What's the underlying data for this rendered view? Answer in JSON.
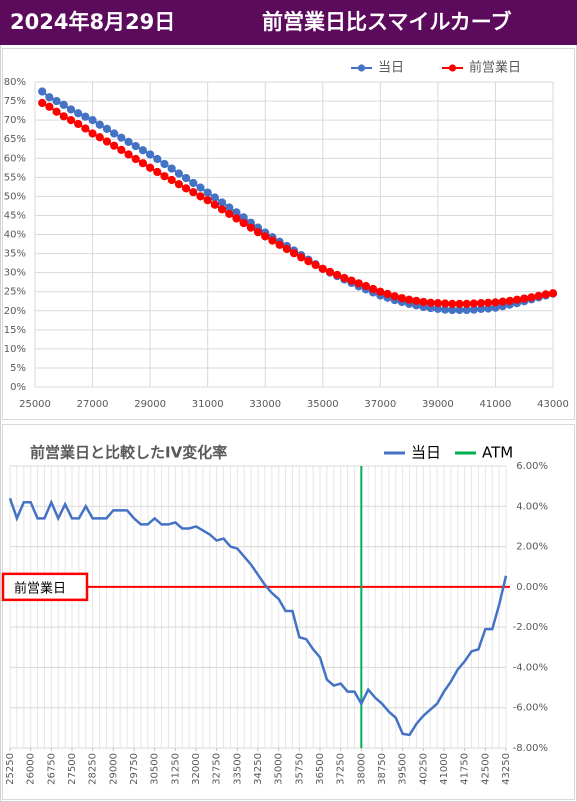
{
  "header": {
    "date": "2024年8月29日",
    "title": "前営業日比スマイルカーブ"
  },
  "chart_data": [
    {
      "type": "line",
      "markers": true,
      "grid": true,
      "legend": "top-right",
      "x": [
        25250,
        25500,
        25750,
        26000,
        26250,
        26500,
        26750,
        27000,
        27250,
        27500,
        27750,
        28000,
        28250,
        28500,
        28750,
        29000,
        29250,
        29500,
        29750,
        30000,
        30250,
        30500,
        30750,
        31000,
        31250,
        31500,
        31750,
        32000,
        32250,
        32500,
        32750,
        33000,
        33250,
        33500,
        33750,
        34000,
        34250,
        34500,
        34750,
        35000,
        35250,
        35500,
        35750,
        36000,
        36250,
        36500,
        36750,
        37000,
        37250,
        37500,
        37750,
        38000,
        38250,
        38500,
        38750,
        39000,
        39250,
        39500,
        39750,
        40000,
        40250,
        40500,
        40750,
        41000,
        41250,
        41500,
        41750,
        42000,
        42250,
        42500,
        42750,
        43000
      ],
      "series": [
        {
          "name": "当日",
          "color": "#4472c4",
          "values": [
            77.5,
            76,
            75,
            74,
            72.8,
            71.8,
            70.9,
            70,
            68.8,
            67.7,
            66.5,
            65.4,
            64.3,
            63.2,
            62.1,
            61,
            59.8,
            58.5,
            57.3,
            56,
            54.8,
            53.5,
            52.3,
            51,
            49.7,
            48.4,
            47.1,
            45.8,
            44.5,
            43.1,
            41.8,
            40.5,
            39.3,
            38.1,
            37,
            35.8,
            34.6,
            33.4,
            32.2,
            31,
            30,
            29.1,
            28.2,
            27.3,
            26.4,
            25.6,
            24.8,
            24,
            23.4,
            22.8,
            22.3,
            21.8,
            21.4,
            21,
            20.7,
            20.5,
            20.3,
            20.2,
            20.2,
            20.2,
            20.3,
            20.5,
            20.6,
            20.8,
            21.2,
            21.6,
            22,
            22.5,
            23,
            23.5,
            24,
            24.5
          ]
        },
        {
          "name": "前営業日",
          "color": "#ff0000",
          "values": [
            74.5,
            73.5,
            72.2,
            71,
            70,
            69,
            67.8,
            66.5,
            65.5,
            64.4,
            63.3,
            62.2,
            61,
            59.8,
            58.7,
            57.5,
            56.4,
            55.3,
            54.3,
            53.2,
            52.1,
            51.1,
            50,
            49,
            47.8,
            46.6,
            45.4,
            44.2,
            43,
            41.8,
            40.6,
            39.5,
            38.4,
            37.3,
            36.2,
            35.1,
            34,
            33,
            32,
            31,
            30.2,
            29.4,
            28.6,
            27.9,
            27.2,
            26.5,
            25.7,
            25,
            24.4,
            23.8,
            23.3,
            22.9,
            22.6,
            22.3,
            22.1,
            22,
            21.9,
            21.8,
            21.8,
            21.8,
            21.9,
            22,
            22.1,
            22.2,
            22.4,
            22.6,
            22.9,
            23.2,
            23.5,
            23.9,
            24.3,
            24.6
          ]
        }
      ],
      "xlim": [
        25000,
        43000
      ],
      "xticks": [
        25000,
        27000,
        29000,
        31000,
        33000,
        35000,
        37000,
        39000,
        41000,
        43000
      ],
      "ylim": [
        0,
        80
      ],
      "yticks": [
        {
          "value": 0,
          "label": "0%"
        },
        {
          "value": 5,
          "label": "5%"
        },
        {
          "value": 10,
          "label": "10%"
        },
        {
          "value": 15,
          "label": "15%"
        },
        {
          "value": 20,
          "label": "20%"
        },
        {
          "value": 25,
          "label": "25%"
        },
        {
          "value": 30,
          "label": "30%"
        },
        {
          "value": 35,
          "label": "35%"
        },
        {
          "value": 40,
          "label": "40%"
        },
        {
          "value": 45,
          "label": "45%"
        },
        {
          "value": 50,
          "label": "50%"
        },
        {
          "value": 55,
          "label": "55%"
        },
        {
          "value": 60,
          "label": "60%"
        },
        {
          "value": 65,
          "label": "65%"
        },
        {
          "value": 70,
          "label": "70%"
        },
        {
          "value": 75,
          "label": "75%"
        },
        {
          "value": 80,
          "label": "80%"
        }
      ]
    },
    {
      "type": "line",
      "title": "前営業日と比較したIV変化率",
      "markers": false,
      "grid": true,
      "y_axis_position": "right",
      "x": [
        25250,
        25500,
        25750,
        26000,
        26250,
        26500,
        26750,
        27000,
        27250,
        27500,
        27750,
        28000,
        28250,
        28500,
        28750,
        29000,
        29250,
        29500,
        29750,
        30000,
        30250,
        30500,
        30750,
        31000,
        31250,
        31500,
        31750,
        32000,
        32250,
        32500,
        32750,
        33000,
        33250,
        33500,
        33750,
        34000,
        34250,
        34500,
        34750,
        35000,
        35250,
        35500,
        35750,
        36000,
        36250,
        36500,
        36750,
        37000,
        37250,
        37500,
        37750,
        38000,
        38250,
        38500,
        38750,
        39000,
        39250,
        39500,
        39750,
        40000,
        40250,
        40500,
        40750,
        41000,
        41250,
        41500,
        41750,
        42000,
        42250,
        42500,
        42750,
        43000,
        43250
      ],
      "series": [
        {
          "name": "当日",
          "color": "#4472c4",
          "values": [
            4.4,
            3.4,
            4.2,
            4.2,
            3.4,
            3.4,
            4.2,
            3.4,
            4.1,
            3.4,
            3.4,
            4.0,
            3.4,
            3.4,
            3.4,
            3.8,
            3.8,
            3.8,
            3.4,
            3.1,
            3.1,
            3.4,
            3.1,
            3.1,
            3.2,
            2.9,
            2.9,
            3.0,
            2.8,
            2.6,
            2.3,
            2.4,
            2.0,
            1.9,
            1.5,
            1.1,
            0.6,
            0.1,
            -0.3,
            -0.6,
            -1.2,
            -1.2,
            -2.5,
            -2.6,
            -3.1,
            -3.5,
            -4.6,
            -4.9,
            -4.8,
            -5.2,
            -5.2,
            -5.8,
            -5.1,
            -5.5,
            -5.8,
            -6.2,
            -6.5,
            -7.3,
            -7.35,
            -6.8,
            -6.4,
            -6.1,
            -5.8,
            -5.2,
            -4.7,
            -4.1,
            -3.7,
            -3.2,
            -3.1,
            -2.1,
            -2.1,
            -0.9,
            0.55
          ]
        }
      ],
      "vertical_line": {
        "name": "ATM",
        "color": "#00b050",
        "x": 38000
      },
      "reference_line": {
        "label": "前営業日",
        "y": 0,
        "color": "#ff0000"
      },
      "xlim": [
        25250,
        43250
      ],
      "xticks": [
        25250,
        26000,
        26750,
        27500,
        28250,
        29000,
        29750,
        30500,
        31250,
        32000,
        32750,
        33500,
        34250,
        35000,
        35750,
        36500,
        37250,
        38000,
        38750,
        39500,
        40250,
        41000,
        41750,
        42500,
        43250
      ],
      "ylim": [
        -8,
        6
      ],
      "yticks": [
        {
          "value": 6,
          "label": "6.00%"
        },
        {
          "value": 4,
          "label": "4.00%"
        },
        {
          "value": 2,
          "label": "2.00%"
        },
        {
          "value": 0,
          "label": "0.00%"
        },
        {
          "value": -2,
          "label": "-2.00%"
        },
        {
          "value": -4,
          "label": "-4.00%"
        },
        {
          "value": -6,
          "label": "-6.00%"
        },
        {
          "value": -8,
          "label": "-8.00%"
        }
      ]
    }
  ]
}
